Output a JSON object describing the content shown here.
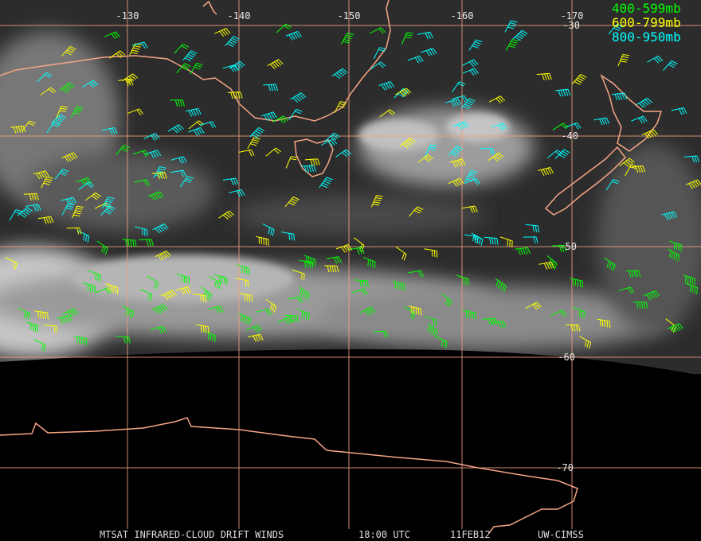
{
  "map": {
    "longitude_labels": [
      "-130",
      "-140",
      "-150",
      "-160",
      "-170"
    ],
    "latitude_labels": [
      "-30",
      "-40",
      "-50",
      "-60",
      "-70"
    ],
    "legend": [
      {
        "label": "400-599mb",
        "color": "#00ff00"
      },
      {
        "label": "600-799mb",
        "color": "#ffff00"
      },
      {
        "label": "800-950mb",
        "color": "#00ffff"
      }
    ],
    "footer": [
      "MTSAT INFRARED-CLOUD DRIFT WINDS",
      "18:00 UTC",
      "11FEB12",
      "UW-CIMSS"
    ]
  }
}
